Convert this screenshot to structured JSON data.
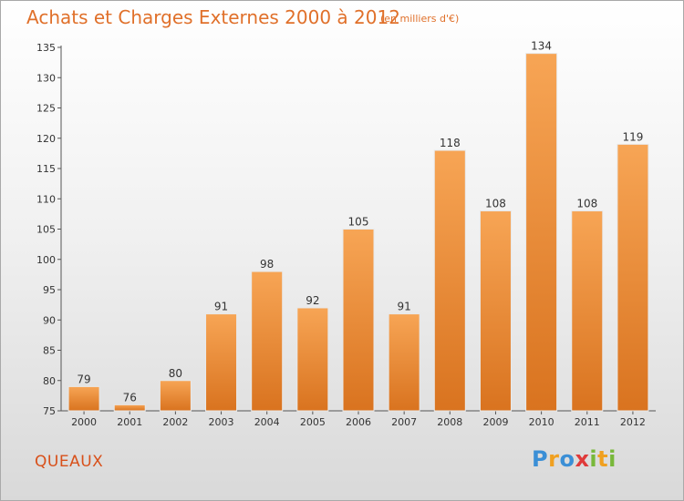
{
  "header": {
    "title": "Achats et Charges Externes 2000 à 2012",
    "subtitle": "(en milliers d'€)"
  },
  "footer": {
    "commune": "QUEAUX",
    "logo": {
      "letters": [
        "P",
        "r",
        "o",
        "x",
        "i",
        "t",
        "i"
      ]
    }
  },
  "colors": {
    "accent": "#e0702a",
    "bar_top": "#f7a555",
    "bar_bottom": "#d9731f",
    "commune": "#d8501a",
    "logo_letters": [
      "#3b8fd6",
      "#f0a020",
      "#3b8fd6",
      "#e03a3a",
      "#78b83a",
      "#f0a020",
      "#78b83a"
    ]
  },
  "chart_data": {
    "type": "bar",
    "title": "Achats et Charges Externes 2000 à 2012",
    "subtitle": "(en milliers d'€)",
    "categories": [
      "2000",
      "2001",
      "2002",
      "2003",
      "2004",
      "2005",
      "2006",
      "2007",
      "2008",
      "2009",
      "2010",
      "2011",
      "2012"
    ],
    "values": [
      79,
      76,
      80,
      91,
      98,
      92,
      105,
      91,
      118,
      108,
      134,
      108,
      119
    ],
    "ylim": [
      75,
      135
    ],
    "yticks": [
      75,
      80,
      85,
      90,
      95,
      100,
      105,
      110,
      115,
      120,
      125,
      130,
      135
    ],
    "grid": false,
    "legend": "none",
    "xlabel": "",
    "ylabel": ""
  }
}
